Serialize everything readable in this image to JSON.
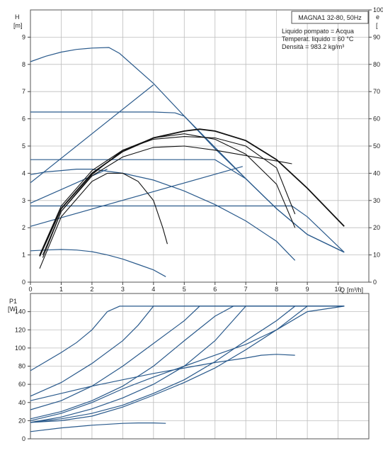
{
  "chart_data": [
    {
      "type": "line",
      "title": "MAGNA1 32-80, 50Hz",
      "annotations": [
        "Liquido pompato = Acqua",
        "Temperat. liquido = 60 °C",
        "Densità = 983.2 kg/m³"
      ],
      "ylabel": "H",
      "yunit": "[m]",
      "y2label": "e",
      "y2unit": "[",
      "xlabel": "Q",
      "xunit": "[m³/h]",
      "xlim": [
        0,
        11
      ],
      "ylim": [
        0,
        10
      ],
      "y2lim": [
        0,
        100
      ],
      "x_ticks": [
        "0",
        "1",
        "2",
        "3",
        "4",
        "5",
        "6",
        "7",
        "8",
        "9",
        "10"
      ],
      "y_ticks": [
        "0",
        "1",
        "2",
        "3",
        "4",
        "5",
        "6",
        "7",
        "8",
        "9"
      ],
      "y2_ticks": [
        "0",
        "10",
        "20",
        "30",
        "40",
        "50",
        "60",
        "70",
        "80",
        "90",
        "100"
      ],
      "grid": true,
      "series": [
        {
          "kind": "head",
          "color": "#2a5a8c",
          "points": [
            [
              0,
              8.1
            ],
            [
              0.5,
              8.3
            ],
            [
              1,
              8.45
            ],
            [
              1.5,
              8.55
            ],
            [
              2,
              8.6
            ],
            [
              2.55,
              8.62
            ],
            [
              2.9,
              8.4
            ],
            [
              4,
              7.3
            ],
            [
              5,
              6.1
            ],
            [
              6,
              4.9
            ],
            [
              7,
              3.8
            ],
            [
              8,
              2.7
            ],
            [
              9,
              1.75
            ],
            [
              10.2,
              1.1
            ]
          ]
        },
        {
          "kind": "head",
          "color": "#2a5a8c",
          "points": [
            [
              0,
              6.25
            ],
            [
              2,
              6.25
            ],
            [
              4,
              6.25
            ],
            [
              4.7,
              6.22
            ],
            [
              5,
              6.1
            ],
            [
              6,
              4.95
            ],
            [
              7,
              3.8
            ],
            [
              8,
              2.7
            ],
            [
              9,
              1.75
            ],
            [
              10.2,
              1.1
            ]
          ]
        },
        {
          "kind": "head",
          "color": "#2a5a8c",
          "points": [
            [
              0,
              4.5
            ],
            [
              5.5,
              4.5
            ],
            [
              6,
              4.5
            ],
            [
              7,
              3.8
            ],
            [
              8,
              2.7
            ],
            [
              9,
              1.75
            ],
            [
              10.2,
              1.1
            ]
          ]
        },
        {
          "kind": "head",
          "color": "#2a5a8c",
          "points": [
            [
              0,
              2.8
            ],
            [
              8.5,
              2.8
            ],
            [
              9,
              2.4
            ],
            [
              10.2,
              1.1
            ]
          ]
        },
        {
          "kind": "head",
          "color": "#2a5a8c",
          "points": [
            [
              0,
              3.95
            ],
            [
              0.5,
              4.05
            ],
            [
              1,
              4.1
            ],
            [
              1.5,
              4.15
            ],
            [
              2,
              4.15
            ],
            [
              3,
              4.0
            ],
            [
              4,
              3.75
            ],
            [
              5,
              3.35
            ],
            [
              6,
              2.85
            ],
            [
              7,
              2.25
            ],
            [
              8,
              1.5
            ],
            [
              8.6,
              0.8
            ]
          ]
        },
        {
          "kind": "head",
          "color": "#2a5a8c",
          "points": [
            [
              0,
              1.15
            ],
            [
              0.5,
              1.18
            ],
            [
              1,
              1.2
            ],
            [
              1.5,
              1.18
            ],
            [
              2,
              1.12
            ],
            [
              2.5,
              1.0
            ],
            [
              3,
              0.85
            ],
            [
              3.5,
              0.65
            ],
            [
              4,
              0.45
            ],
            [
              4.4,
              0.2
            ]
          ]
        },
        {
          "kind": "head",
          "color": "#2a5a8c",
          "points": [
            [
              0,
              3.65
            ],
            [
              4.0,
              7.25
            ]
          ]
        },
        {
          "kind": "head",
          "color": "#2a5a8c",
          "points": [
            [
              0,
              2.9
            ],
            [
              2.5,
              4.15
            ]
          ]
        },
        {
          "kind": "head",
          "color": "#2a5a8c",
          "points": [
            [
              0,
              2.05
            ],
            [
              6.9,
              4.25
            ]
          ]
        },
        {
          "kind": "efficiency",
          "color": "#111111",
          "points": [
            [
              0.3,
              0.95
            ],
            [
              1,
              2.7
            ],
            [
              2,
              4.0
            ],
            [
              3,
              4.8
            ],
            [
              4,
              5.3
            ],
            [
              5,
              5.55
            ],
            [
              5.5,
              5.62
            ],
            [
              6,
              5.55
            ],
            [
              7,
              5.2
            ],
            [
              8,
              4.5
            ],
            [
              9,
              3.45
            ],
            [
              10.2,
              2.05
            ]
          ]
        },
        {
          "kind": "efficiency",
          "color": "#111111",
          "points": [
            [
              0.3,
              1.0
            ],
            [
              1,
              2.8
            ],
            [
              2,
              4.1
            ],
            [
              3,
              4.85
            ],
            [
              4,
              5.25
            ],
            [
              5,
              5.35
            ],
            [
              6,
              5.3
            ],
            [
              7,
              5.0
            ],
            [
              8,
              4.2
            ],
            [
              8.6,
              2.5
            ]
          ]
        },
        {
          "kind": "efficiency",
          "color": "#111111",
          "points": [
            [
              0.4,
              0.9
            ],
            [
              1,
              2.6
            ],
            [
              2,
              3.95
            ],
            [
              3,
              4.85
            ],
            [
              4,
              5.3
            ],
            [
              5,
              5.45
            ],
            [
              6,
              5.25
            ],
            [
              7,
              4.7
            ],
            [
              8,
              3.6
            ],
            [
              8.6,
              2.0
            ]
          ]
        },
        {
          "kind": "efficiency",
          "color": "#111111",
          "points": [
            [
              0.3,
              0.5
            ],
            [
              1,
              2.4
            ],
            [
              2,
              3.7
            ],
            [
              2.5,
              4.0
            ],
            [
              3,
              4.0
            ],
            [
              3.5,
              3.7
            ],
            [
              4,
              3.0
            ],
            [
              4.3,
              2.0
            ],
            [
              4.45,
              1.4
            ]
          ]
        },
        {
          "kind": "efficiency",
          "color": "#111111",
          "points": [
            [
              0.4,
              1.0
            ],
            [
              1,
              2.6
            ],
            [
              2,
              3.9
            ],
            [
              3,
              4.6
            ],
            [
              4,
              4.95
            ],
            [
              5,
              5.0
            ],
            [
              6,
              4.85
            ],
            [
              7,
              4.65
            ],
            [
              8,
              4.45
            ],
            [
              8.5,
              4.35
            ]
          ]
        }
      ]
    },
    {
      "type": "line",
      "ylabel": "P1",
      "yunit": "[W]",
      "xlim": [
        0,
        11
      ],
      "ylim": [
        0,
        160
      ],
      "y_ticks": [
        "0",
        "20",
        "40",
        "60",
        "80",
        "100",
        "120",
        "140"
      ],
      "grid": true,
      "series": [
        {
          "color": "#2a5a8c",
          "points": [
            [
              0,
              75
            ],
            [
              0.5,
              85
            ],
            [
              1,
              95
            ],
            [
              1.5,
              106
            ],
            [
              2,
              120
            ],
            [
              2.5,
              140
            ],
            [
              2.9,
              146
            ],
            [
              3.5,
              146
            ],
            [
              5,
              146
            ],
            [
              10.2,
              146
            ]
          ]
        },
        {
          "color": "#2a5a8c",
          "points": [
            [
              0,
              47
            ],
            [
              1,
              62
            ],
            [
              2,
              83
            ],
            [
              3,
              108
            ],
            [
              3.5,
              125
            ],
            [
              4,
              146
            ],
            [
              10.2,
              146
            ]
          ]
        },
        {
          "color": "#2a5a8c",
          "points": [
            [
              0,
              32
            ],
            [
              1,
              42
            ],
            [
              2,
              58
            ],
            [
              3,
              80
            ],
            [
              4,
              105
            ],
            [
              5,
              130
            ],
            [
              5.5,
              146
            ],
            [
              10.2,
              146
            ]
          ]
        },
        {
          "color": "#2a5a8c",
          "points": [
            [
              0,
              22
            ],
            [
              1,
              30
            ],
            [
              2,
              42
            ],
            [
              3,
              58
            ],
            [
              4,
              80
            ],
            [
              5,
              108
            ],
            [
              6,
              135
            ],
            [
              6.6,
              146
            ],
            [
              10.2,
              146
            ]
          ]
        },
        {
          "color": "#2a5a8c",
          "points": [
            [
              0,
              18
            ],
            [
              1,
              24
            ],
            [
              2,
              33
            ],
            [
              3,
              45
            ],
            [
              4,
              60
            ],
            [
              5,
              80
            ],
            [
              6,
              108
            ],
            [
              7,
              146
            ],
            [
              10.2,
              146
            ]
          ]
        },
        {
          "color": "#2a5a8c",
          "points": [
            [
              0,
              18
            ],
            [
              1,
              22
            ],
            [
              2,
              28
            ],
            [
              3,
              37
            ],
            [
              4,
              50
            ],
            [
              5,
              65
            ],
            [
              6,
              85
            ],
            [
              7,
              108
            ],
            [
              8,
              130
            ],
            [
              8.6,
              146
            ],
            [
              10.2,
              146
            ]
          ]
        },
        {
          "color": "#2a5a8c",
          "points": [
            [
              0,
              42
            ],
            [
              1,
              50
            ],
            [
              2,
              58
            ],
            [
              3,
              65
            ],
            [
              4,
              72
            ],
            [
              5,
              78
            ],
            [
              6,
              84
            ],
            [
              7,
              89
            ],
            [
              7.5,
              92
            ],
            [
              8,
              93
            ],
            [
              8.6,
              92
            ]
          ]
        },
        {
          "color": "#2a5a8c",
          "points": [
            [
              0,
              8
            ],
            [
              1,
              12
            ],
            [
              2,
              15
            ],
            [
              3,
              17
            ],
            [
              3.5,
              17.5
            ],
            [
              4,
              17.5
            ],
            [
              4.4,
              17
            ]
          ]
        },
        {
          "color": "#2a5a8c",
          "points": [
            [
              0,
              20
            ],
            [
              1,
              28
            ],
            [
              2,
              40
            ],
            [
              3,
              55
            ],
            [
              4,
              68
            ],
            [
              5,
              80
            ],
            [
              6,
              92
            ],
            [
              7,
              104
            ],
            [
              8,
              120
            ],
            [
              9,
              140
            ],
            [
              10.2,
              146
            ]
          ]
        },
        {
          "color": "#2a5a8c",
          "points": [
            [
              0,
              18
            ],
            [
              1,
              20
            ],
            [
              2,
              25
            ],
            [
              3,
              35
            ],
            [
              4,
              48
            ],
            [
              5,
              62
            ],
            [
              6,
              78
            ],
            [
              7,
              98
            ],
            [
              8,
              120
            ],
            [
              9,
              146
            ],
            [
              10.2,
              146
            ]
          ]
        }
      ]
    }
  ]
}
